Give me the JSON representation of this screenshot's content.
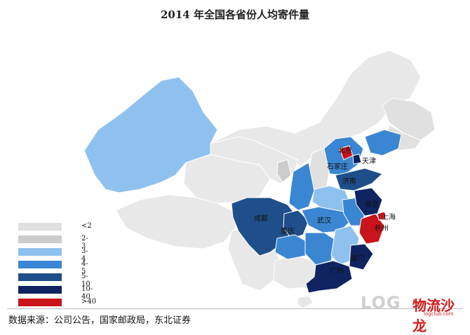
{
  "title": "2014 年全国各省份人均寄件量",
  "colors": {
    "lt2": "#e0e0e0",
    "b2_3": "#cccccc",
    "b3_4": "#8fc1ef",
    "b4_5": "#3b86d2",
    "b5_10": "#1f4f8a",
    "b10_40": "#0f2460",
    "gt40": "#c8141a",
    "other": "#e8e8e8"
  },
  "legend": [
    {
      "label": "<2",
      "color_key": "lt2"
    },
    {
      "label": "2-3",
      "color_key": "b2_3"
    },
    {
      "label": "3-4",
      "color_key": "b3_4"
    },
    {
      "label": "4-5",
      "color_key": "b4_5"
    },
    {
      "label": "5-10",
      "color_key": "b5_10"
    },
    {
      "label": "10-40",
      "color_key": "b10_40"
    },
    {
      "label": ">40",
      "color_key": "gt40"
    }
  ],
  "cities": {
    "beijing": "北京",
    "tianjin": "天津",
    "shijiazhuang": "石家庄",
    "jinan": "济南",
    "nanjing": "南京",
    "shanghai": "上海",
    "hangzhou": "杭州",
    "wuhan": "武汉",
    "chengdu": "成都",
    "chongqing": "重庆",
    "xiamen": "厦门",
    "guangzhou": "广州"
  },
  "source": "数据来源：公司公告，国家邮政局，东北证券",
  "logo": {
    "text": "LOG",
    "cn": "物流沙龙",
    "sub": "logclub.com"
  }
}
